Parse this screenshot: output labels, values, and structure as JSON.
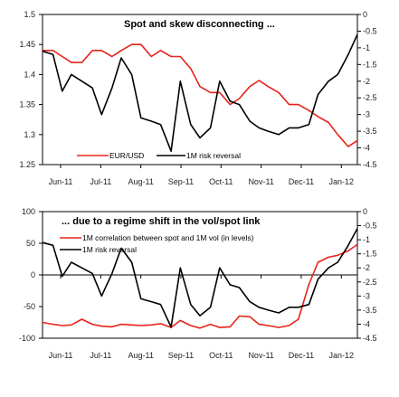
{
  "colors": {
    "red": "#e8231a",
    "black": "#000000",
    "axis": "#000000"
  },
  "chart_data": [
    {
      "type": "line",
      "title": "Spot and skew disconnecting ...",
      "categories": [
        "Jun-11",
        "Jul-11",
        "Aug-11",
        "Sep-11",
        "Oct-11",
        "Nov-11",
        "Dec-11",
        "Jan-12"
      ],
      "x": [
        0,
        8,
        15,
        22,
        30,
        38,
        45,
        53,
        60,
        68,
        75,
        83,
        90,
        98,
        105,
        113,
        120,
        128,
        135,
        143,
        150,
        158,
        165,
        172,
        180,
        188,
        195,
        203,
        210,
        218,
        225,
        233,
        240
      ],
      "y_left": {
        "ticks": [
          "1.5",
          "1.45",
          "1.4",
          "1.35",
          "1.3",
          "1.25"
        ],
        "lim": [
          1.25,
          1.5
        ]
      },
      "y_right": {
        "ticks": [
          "0",
          "-0.5",
          "-1",
          "-1.5",
          "-2",
          "-2.5",
          "-3",
          "-3.5",
          "-4",
          "-4.5"
        ],
        "lim": [
          -4.5,
          0
        ]
      },
      "series": [
        {
          "name": "EUR/USD",
          "axis": "left",
          "color": "#e8231a",
          "values": [
            1.44,
            1.44,
            1.43,
            1.42,
            1.42,
            1.44,
            1.44,
            1.43,
            1.44,
            1.45,
            1.45,
            1.43,
            1.44,
            1.43,
            1.43,
            1.41,
            1.38,
            1.37,
            1.37,
            1.35,
            1.36,
            1.38,
            1.39,
            1.38,
            1.37,
            1.35,
            1.35,
            1.34,
            1.33,
            1.32,
            1.3,
            1.28,
            1.29
          ]
        },
        {
          "name": "1M risk reversal",
          "axis": "right",
          "color": "#000000",
          "values": [
            -1.1,
            -1.2,
            -2.3,
            -1.8,
            -2.0,
            -2.2,
            -3.0,
            -2.2,
            -1.3,
            -1.8,
            -3.1,
            -3.2,
            -3.3,
            -4.1,
            -2.0,
            -3.3,
            -3.7,
            -3.4,
            -2.0,
            -2.6,
            -2.7,
            -3.2,
            -3.4,
            -3.5,
            -3.6,
            -3.4,
            -3.4,
            -3.3,
            -2.4,
            -2.0,
            -1.8,
            -1.2,
            -0.6
          ]
        }
      ]
    },
    {
      "type": "line",
      "title": "... due to a regime shift in the vol/spot link",
      "categories": [
        "Jun-11",
        "Jul-11",
        "Aug-11",
        "Sep-11",
        "Oct-11",
        "Nov-11",
        "Dec-11",
        "Jan-12"
      ],
      "x": [
        0,
        8,
        15,
        22,
        30,
        38,
        45,
        53,
        60,
        68,
        75,
        83,
        90,
        98,
        105,
        113,
        120,
        128,
        135,
        143,
        150,
        158,
        165,
        172,
        180,
        188,
        195,
        203,
        210,
        218,
        225,
        233,
        240
      ],
      "y_left": {
        "ticks": [
          "100",
          "50",
          "0",
          "-50",
          "-100"
        ],
        "lim": [
          -100,
          100
        ]
      },
      "y_right": {
        "ticks": [
          "0",
          "-0.5",
          "-1",
          "-1.5",
          "-2",
          "-2.5",
          "-3",
          "-3.5",
          "-4",
          "-4.5"
        ],
        "lim": [
          -4.5,
          0
        ]
      },
      "series": [
        {
          "name": "1M correlation between spot and 1M vol (in levels)",
          "axis": "left",
          "color": "#e8231a",
          "values": [
            -75,
            -78,
            -80,
            -79,
            -70,
            -78,
            -81,
            -82,
            -78,
            -79,
            -80,
            -79,
            -77,
            -83,
            -72,
            -80,
            -84,
            -78,
            -83,
            -82,
            -65,
            -66,
            -78,
            -80,
            -83,
            -80,
            -70,
            -15,
            20,
            28,
            31,
            38,
            48
          ]
        },
        {
          "name": "1M risk reversal",
          "axis": "right",
          "color": "#000000",
          "values": [
            -1.1,
            -1.2,
            -2.3,
            -1.8,
            -2.0,
            -2.2,
            -3.0,
            -2.2,
            -1.3,
            -1.8,
            -3.1,
            -3.2,
            -3.3,
            -4.1,
            -2.0,
            -3.3,
            -3.7,
            -3.4,
            -2.0,
            -2.6,
            -2.7,
            -3.2,
            -3.4,
            -3.5,
            -3.6,
            -3.4,
            -3.4,
            -3.3,
            -2.4,
            -2.0,
            -1.8,
            -1.2,
            -0.6
          ]
        }
      ]
    }
  ]
}
